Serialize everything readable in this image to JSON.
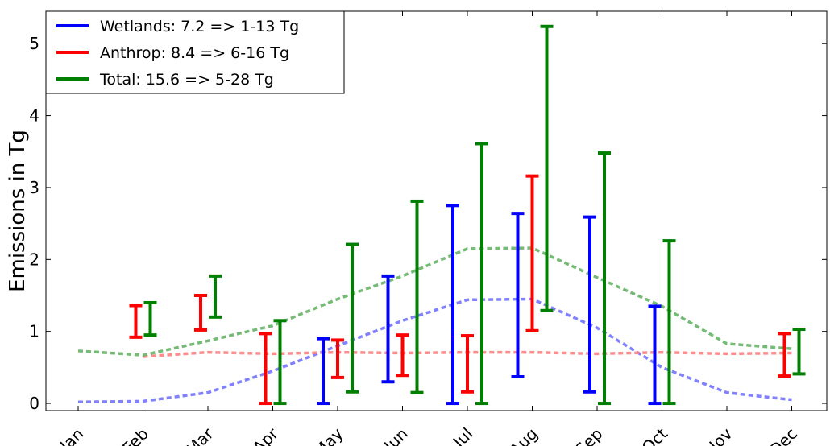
{
  "chart_data": {
    "type": "errorbar",
    "ylabel": "Emissions in Tg",
    "xlabel": "",
    "title": "",
    "ylim": [
      -0.1,
      5.45
    ],
    "yticks": [
      0,
      1,
      2,
      3,
      4,
      5
    ],
    "categories": [
      "Jan",
      "Feb",
      "Mar",
      "Apr",
      "May",
      "Jun",
      "Jul",
      "Aug",
      "Sep",
      "Oct",
      "Nov",
      "Dec"
    ],
    "grid": false,
    "legend_placement": "top-left",
    "series": [
      {
        "name": "Wetlands: 7.2 => 1-13 Tg",
        "color": "#0000ff",
        "ranges": [
          null,
          null,
          null,
          null,
          [
            0.0,
            0.9
          ],
          [
            0.3,
            1.77
          ],
          [
            0.0,
            2.75
          ],
          [
            0.37,
            2.64
          ],
          [
            0.16,
            2.59
          ],
          [
            0.0,
            1.35
          ],
          null,
          null
        ],
        "baseline": [
          0.02,
          0.03,
          0.15,
          0.45,
          0.8,
          1.15,
          1.44,
          1.45,
          1.05,
          0.5,
          0.15,
          0.05
        ]
      },
      {
        "name": "Anthrop: 8.4 => 6-16 Tg",
        "color": "#ff0000",
        "ranges": [
          null,
          [
            0.92,
            1.36
          ],
          [
            1.02,
            1.5
          ],
          [
            0.0,
            0.97
          ],
          [
            0.36,
            0.88
          ],
          [
            0.39,
            0.95
          ],
          [
            0.16,
            0.94
          ],
          [
            1.01,
            3.16
          ],
          null,
          null,
          null,
          [
            0.38,
            0.97
          ]
        ],
        "baseline": [
          null,
          0.65,
          0.71,
          0.69,
          0.71,
          0.7,
          0.71,
          0.71,
          0.69,
          0.71,
          0.69,
          0.7
        ]
      },
      {
        "name": "Total: 15.6 => 5-28 Tg",
        "color": "#008000",
        "ranges": [
          null,
          [
            0.95,
            1.4
          ],
          [
            1.2,
            1.77
          ],
          [
            0.0,
            1.15
          ],
          [
            0.16,
            2.21
          ],
          [
            0.15,
            2.81
          ],
          [
            0.0,
            3.61
          ],
          [
            1.29,
            5.24
          ],
          [
            0.0,
            3.48
          ],
          [
            0.0,
            2.26
          ],
          null,
          [
            0.41,
            1.03
          ]
        ],
        "baseline": [
          0.73,
          0.67,
          0.87,
          1.08,
          1.45,
          1.77,
          2.15,
          2.16,
          1.75,
          1.35,
          0.83,
          0.76
        ]
      }
    ]
  }
}
